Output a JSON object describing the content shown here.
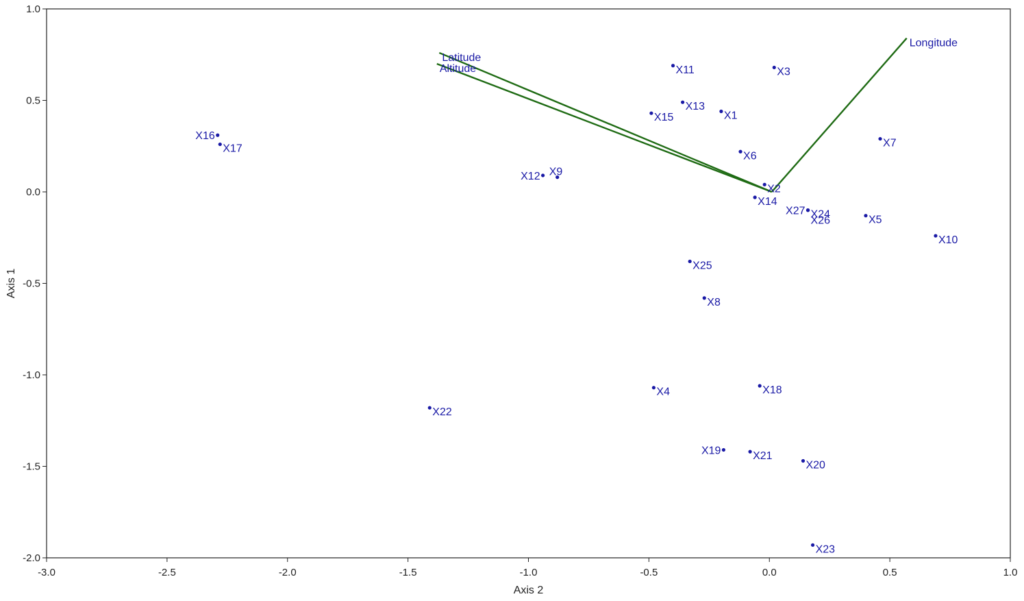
{
  "chart_data": {
    "type": "scatter",
    "title": "",
    "xlabel": "Axis 2",
    "ylabel": "Axis 1",
    "xlim": [
      -3.0,
      1.0
    ],
    "ylim": [
      -2.0,
      1.0
    ],
    "xticks": [
      "-3.0",
      "-2.5",
      "-2.0",
      "-1.5",
      "-1.0",
      "-0.5",
      "0.0",
      "0.5",
      "1.0"
    ],
    "yticks": [
      "1.0",
      "0.5",
      "0.0",
      "-0.5",
      "-1.0",
      "-1.5",
      "-2.0"
    ],
    "grid": false,
    "point_color": "#1a1aa6",
    "vector_color": "#1f6b14",
    "points": [
      {
        "label": "X1",
        "x": -0.2,
        "y": 0.44,
        "pos": "right"
      },
      {
        "label": "X2",
        "x": -0.02,
        "y": 0.04,
        "pos": "right"
      },
      {
        "label": "X3",
        "x": 0.02,
        "y": 0.68,
        "pos": "right"
      },
      {
        "label": "X4",
        "x": -0.48,
        "y": -1.07,
        "pos": "right"
      },
      {
        "label": "X5",
        "x": 0.4,
        "y": -0.13,
        "pos": "right"
      },
      {
        "label": "X6",
        "x": -0.12,
        "y": 0.22,
        "pos": "right"
      },
      {
        "label": "X7",
        "x": 0.46,
        "y": 0.29,
        "pos": "right"
      },
      {
        "label": "X8",
        "x": -0.27,
        "y": -0.58,
        "pos": "right"
      },
      {
        "label": "X9",
        "x": -0.88,
        "y": 0.08,
        "pos": "above"
      },
      {
        "label": "X10",
        "x": 0.69,
        "y": -0.24,
        "pos": "right"
      },
      {
        "label": "X11",
        "x": -0.4,
        "y": 0.69,
        "pos": "right"
      },
      {
        "label": "X12",
        "x": -0.94,
        "y": 0.09,
        "pos": "left"
      },
      {
        "label": "X13",
        "x": -0.36,
        "y": 0.49,
        "pos": "right"
      },
      {
        "label": "X14",
        "x": -0.06,
        "y": -0.03,
        "pos": "right"
      },
      {
        "label": "X15",
        "x": -0.49,
        "y": 0.43,
        "pos": "right"
      },
      {
        "label": "X16",
        "x": -2.29,
        "y": 0.31,
        "pos": "left"
      },
      {
        "label": "X17",
        "x": -2.28,
        "y": 0.26,
        "pos": "right"
      },
      {
        "label": "X18",
        "x": -0.04,
        "y": -1.06,
        "pos": "right"
      },
      {
        "label": "X19",
        "x": -0.19,
        "y": -1.41,
        "pos": "left"
      },
      {
        "label": "X20",
        "x": 0.14,
        "y": -1.47,
        "pos": "right"
      },
      {
        "label": "X21",
        "x": -0.08,
        "y": -1.42,
        "pos": "right"
      },
      {
        "label": "X22",
        "x": -1.41,
        "y": -1.18,
        "pos": "right"
      },
      {
        "label": "X23",
        "x": 0.18,
        "y": -1.93,
        "pos": "right"
      },
      {
        "label": "X24",
        "x": 0.16,
        "y": -0.1,
        "pos": "right"
      },
      {
        "label": "X25",
        "x": -0.33,
        "y": -0.38,
        "pos": "right"
      },
      {
        "label": "X26",
        "x": 0.16,
        "y": -0.1,
        "pos": "below"
      },
      {
        "label": "X27",
        "x": 0.16,
        "y": -0.1,
        "pos": "left"
      }
    ],
    "vectors": [
      {
        "label": "Latitude",
        "x0": 0.01,
        "y0": 0.0,
        "x1": -1.37,
        "y1": 0.76
      },
      {
        "label": "Altitude",
        "x0": 0.01,
        "y0": 0.0,
        "x1": -1.38,
        "y1": 0.7
      },
      {
        "label": "Longitude",
        "x0": 0.01,
        "y0": 0.0,
        "x1": 0.57,
        "y1": 0.84
      }
    ]
  }
}
